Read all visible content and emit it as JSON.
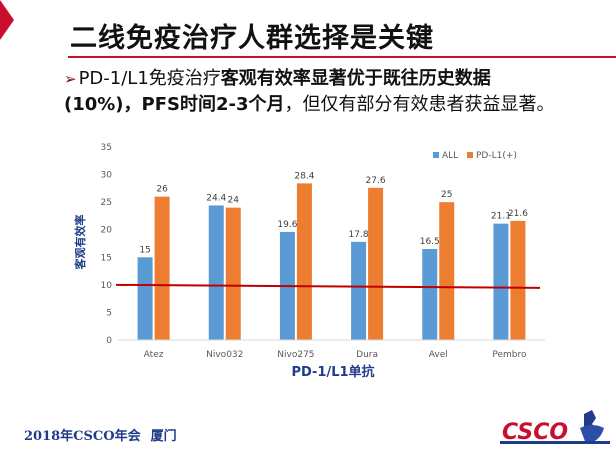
{
  "slide": {
    "title": "二线免疫治疗人群选择是关键",
    "bullet": {
      "part1": "PD-1/L1免疫治疗",
      "part2": "客观有效率显著优于既往历史数据(10%)，PFS时间2-3个月",
      "part3": "，但仅有部分有效患者获益显著。"
    },
    "footer": {
      "event": "2018年CSCO年会",
      "city": "厦门"
    },
    "logo_text": "CSCO"
  },
  "colors": {
    "accent": "#c8102e",
    "series_all": "#5b9bd5",
    "series_pdl1": "#ed7d31",
    "threshold": "#c00000",
    "footer": "#1f3b8a"
  },
  "chart_data": {
    "type": "bar",
    "title": "",
    "xlabel": "PD-1/L1单抗",
    "ylabel": "客观有效率",
    "categories": [
      "Atez",
      "Nivo032",
      "Nivo275",
      "Dura",
      "Avel",
      "Pembro"
    ],
    "series": [
      {
        "name": "ALL",
        "values": [
          15,
          24.4,
          19.6,
          17.8,
          16.5,
          21.1
        ],
        "labels": [
          "15",
          "24.4",
          "19.6",
          "17.8",
          "16.5",
          "21.1"
        ]
      },
      {
        "name": "PD-L1(+)",
        "values": [
          26,
          24,
          28.4,
          27.6,
          25,
          21.6
        ],
        "labels": [
          "26",
          "24",
          "28.4",
          "27.6",
          "25",
          "21.6"
        ]
      }
    ],
    "ylim": [
      0,
      35
    ],
    "yticks": [
      0,
      5,
      10,
      15,
      20,
      25,
      30,
      35
    ],
    "reference_line": {
      "y": 10,
      "color": "#c00000"
    },
    "legend_position": "top-right",
    "grid": false
  }
}
